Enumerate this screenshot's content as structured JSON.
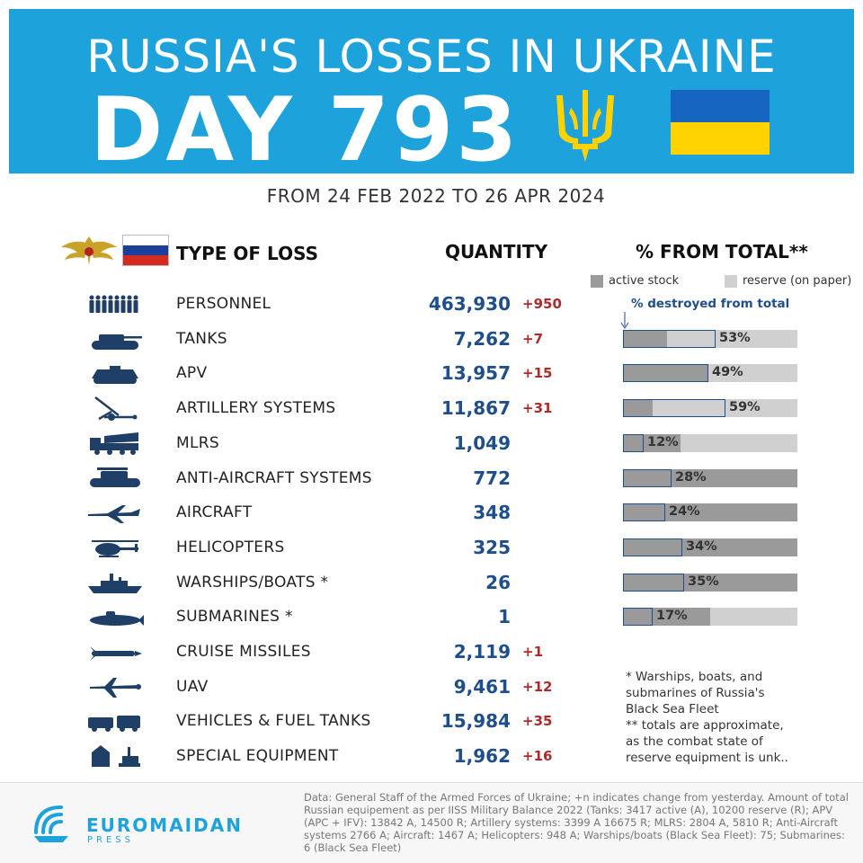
{
  "header": {
    "title": "RUSSIA'S LOSSES IN UKRAINE",
    "day": "DAY 793",
    "date_range": "FROM 24 FEB 2022 TO 26 APR 2024"
  },
  "columns": {
    "type": "TYPE OF LOSS",
    "quantity": "QUANTITY",
    "percent": "% FROM TOTAL**"
  },
  "legend": {
    "active": "active stock",
    "reserve": "reserve (on paper)",
    "destroyed_note": "% destroyed from total",
    "active_color": "#9a9a9a",
    "reserve_color": "#d0d0d0",
    "outline_color": "#1f4e8c"
  },
  "rows": [
    {
      "icon": "soldiers-icon",
      "label": "PERSONNEL",
      "quantity": "463,930",
      "change": "+950"
    },
    {
      "icon": "tank-icon",
      "label": "TANKS",
      "quantity": "7,262",
      "change": "+7",
      "percent": "53%",
      "destroyed": 0.53,
      "active_share": 0.25
    },
    {
      "icon": "apv-icon",
      "label": "APV",
      "quantity": "13,957",
      "change": "+15",
      "percent": "49%",
      "destroyed": 0.49,
      "active_share": 0.49
    },
    {
      "icon": "artillery-icon",
      "label": "ARTILLERY SYSTEMS",
      "quantity": "11,867",
      "change": "+31",
      "percent": "59%",
      "destroyed": 0.59,
      "active_share": 0.17
    },
    {
      "icon": "mlrs-icon",
      "label": "MLRS",
      "quantity": "1,049",
      "change": "",
      "percent": "12%",
      "destroyed": 0.12,
      "active_share": 0.33
    },
    {
      "icon": "anti-aircraft-icon",
      "label": "ANTI-AIRCRAFT SYSTEMS",
      "quantity": "772",
      "change": "",
      "percent": "28%",
      "destroyed": 0.28,
      "active_share": 1.0
    },
    {
      "icon": "aircraft-icon",
      "label": "AIRCRAFT",
      "quantity": "348",
      "change": "",
      "percent": "24%",
      "destroyed": 0.24,
      "active_share": 1.0
    },
    {
      "icon": "helicopter-icon",
      "label": "HELICOPTERS",
      "quantity": "325",
      "change": "",
      "percent": "34%",
      "destroyed": 0.34,
      "active_share": 1.0
    },
    {
      "icon": "warship-icon",
      "label": "WARSHIPS/BOATS *",
      "quantity": "26",
      "change": "",
      "percent": "35%",
      "destroyed": 0.35,
      "active_share": 1.0
    },
    {
      "icon": "submarine-icon",
      "label": "SUBMARINES *",
      "quantity": "1",
      "change": "",
      "percent": "17%",
      "destroyed": 0.17,
      "active_share": 0.5
    },
    {
      "icon": "cruise-missile-icon",
      "label": "CRUISE MISSILES",
      "quantity": "2,119",
      "change": "+1"
    },
    {
      "icon": "uav-icon",
      "label": "UAV",
      "quantity": "9,461",
      "change": "+12"
    },
    {
      "icon": "vehicles-icon",
      "label": "VEHICLES & FUEL TANKS",
      "quantity": "15,984",
      "change": "+35"
    },
    {
      "icon": "special-equipment-icon",
      "label": "SPECIAL EQUIPMENT",
      "quantity": "1,962",
      "change": "+16"
    }
  ],
  "footnote": "* Warships, boats, and submarines of Russia's Black Sea Fleet ** totals are approximate, as the combat state of reserve equipment is unk..",
  "footnote_lines": [
    "* Warships, boats, and",
    "submarines of Russia's",
    "Black Sea Fleet",
    "** totals are approximate,",
    "as the combat state of",
    "reserve equipment is unk.."
  ],
  "footer": {
    "brand": "EUROMAIDAN",
    "brand_sub": "PRESS",
    "source": "Data: General Staff of the Armed Forces of Ukraine; +n indicates change from yesterday. Amount of total Russian equipement as per IISS Military Balance 2022 (Tanks: 3417 active (A), 10200 reserve (R); APV (APC + IFV): 13842 A, 14500 R; Artillery systems: 3399 A 16675 R; MLRS: 2804 A, 5810 R; Anti-Aircraft systems 2766 A; Aircraft: 1467 A; Helicopters: 948 A; Warships/boats (Black Sea Fleet): 75; Submarines: 6 (Black Sea Fleet)"
  },
  "colors": {
    "banner": "#1ea2dc",
    "quantity": "#1f4e8c",
    "change": "#b12a2a",
    "flag_ua_blue": "#1565c0",
    "flag_ua_yellow": "#ffd200"
  }
}
